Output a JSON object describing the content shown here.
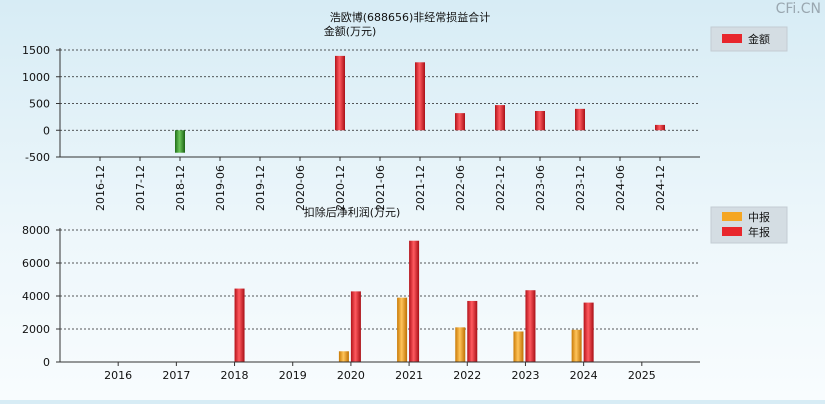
{
  "watermark": "CFi.CN",
  "chart_data": [
    {
      "type": "bar",
      "title": "浩欧博(688656)非经常损益合计",
      "ylabel": "金额(万元)",
      "categories": [
        "2016-12",
        "2017-12",
        "2018-12",
        "2019-06",
        "2019-12",
        "2020-06",
        "2020-12",
        "2021-06",
        "2021-12",
        "2022-06",
        "2022-12",
        "2023-06",
        "2023-12",
        "2024-06",
        "2024-12"
      ],
      "series": [
        {
          "name": "金额",
          "values": [
            null,
            null,
            -420,
            null,
            null,
            null,
            1390,
            null,
            1270,
            320,
            470,
            360,
            400,
            null,
            100
          ]
        }
      ],
      "ylim": [
        -500,
        1500
      ],
      "yticks": [
        -500,
        0,
        500,
        1000,
        1500
      ],
      "grid": true,
      "legend": "top-right",
      "colors": {
        "positive": "#e8262c",
        "negative": "#3a9a2e"
      }
    },
    {
      "type": "bar",
      "title": "",
      "ylabel": "扣除后净利润(万元)",
      "categories": [
        "2016",
        "2017",
        "2018",
        "2019",
        "2020",
        "2021",
        "2022",
        "2023",
        "2024",
        "2025"
      ],
      "series": [
        {
          "name": "中报",
          "values": [
            null,
            null,
            null,
            null,
            650,
            3900,
            2100,
            1850,
            1950,
            null
          ]
        },
        {
          "name": "年报",
          "values": [
            null,
            null,
            4450,
            null,
            4280,
            7350,
            3700,
            4350,
            3600,
            null
          ]
        }
      ],
      "ylim": [
        0,
        8000
      ],
      "yticks": [
        0,
        2000,
        4000,
        6000,
        8000
      ],
      "grid": true,
      "legend": "top-right",
      "colors": {
        "中报": "#f5a623",
        "年报": "#e8262c"
      }
    }
  ]
}
